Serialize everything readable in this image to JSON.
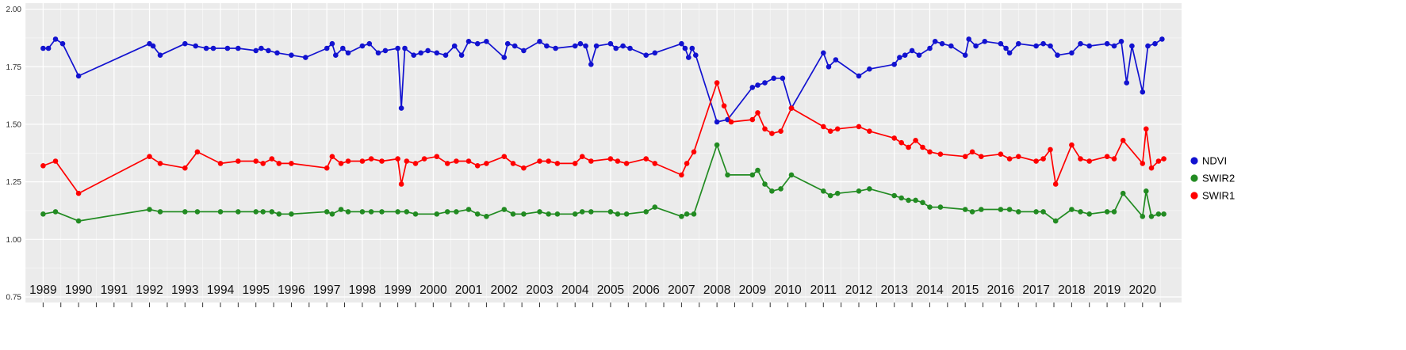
{
  "page": {
    "background": "#FFFFFF"
  },
  "chart_data": {
    "type": "line",
    "title": "",
    "xlabel": "",
    "ylabel": "",
    "xlim": [
      1989,
      2020
    ],
    "ylim": [
      0.75,
      2.0
    ],
    "grid": {
      "major": true,
      "minor": true,
      "panel_background": "#EBEBEB",
      "grid_color": "#FFFFFF"
    },
    "y_tick_values": [
      2.0,
      1.75,
      1.5,
      1.25,
      1.0,
      0.75
    ],
    "y_tick_labels": [
      "2.00",
      "1.75",
      "1.50",
      "1.25",
      "1.00",
      "0.75"
    ],
    "x_tick_labels": [
      "1989",
      "1990",
      "1991",
      "1992",
      "1993",
      "1994",
      "1995",
      "1996",
      "1997",
      "1998",
      "1999",
      "2000",
      "2001",
      "2002",
      "2003",
      "2004",
      "2005",
      "2006",
      "2007",
      "2008",
      "2009",
      "2010",
      "2011",
      "2012",
      "2013",
      "2014",
      "2015",
      "2016",
      "2017",
      "2018",
      "2019",
      "2020"
    ],
    "legend": {
      "position": "right",
      "entries": [
        "NDVI",
        "SWIR2",
        "SWIR1"
      ]
    },
    "theme": {
      "panel_bg": "#EBEBEB",
      "grid_color": "#FFFFFF",
      "axis_text_color": "#303030",
      "x_label_color": "#111111",
      "tick_color": "#333333"
    },
    "series": [
      {
        "name": "NDVI",
        "color": "#1212D0",
        "points": [
          [
            1989.0,
            1.83
          ],
          [
            1989.15,
            1.83
          ],
          [
            1989.35,
            1.87
          ],
          [
            1989.55,
            1.85
          ],
          [
            1990.0,
            1.71
          ],
          [
            1992.0,
            1.85
          ],
          [
            1992.1,
            1.84
          ],
          [
            1992.3,
            1.8
          ],
          [
            1993.0,
            1.85
          ],
          [
            1993.3,
            1.84
          ],
          [
            1993.6,
            1.83
          ],
          [
            1993.8,
            1.83
          ],
          [
            1994.2,
            1.83
          ],
          [
            1994.5,
            1.83
          ],
          [
            1995.0,
            1.82
          ],
          [
            1995.15,
            1.83
          ],
          [
            1995.35,
            1.82
          ],
          [
            1995.6,
            1.81
          ],
          [
            1996.0,
            1.8
          ],
          [
            1996.4,
            1.79
          ],
          [
            1997.0,
            1.83
          ],
          [
            1997.15,
            1.85
          ],
          [
            1997.25,
            1.8
          ],
          [
            1997.45,
            1.83
          ],
          [
            1997.6,
            1.81
          ],
          [
            1998.0,
            1.84
          ],
          [
            1998.2,
            1.85
          ],
          [
            1998.45,
            1.81
          ],
          [
            1998.65,
            1.82
          ],
          [
            1999.0,
            1.83
          ],
          [
            1999.1,
            1.57
          ],
          [
            1999.2,
            1.83
          ],
          [
            1999.45,
            1.8
          ],
          [
            1999.65,
            1.81
          ],
          [
            1999.85,
            1.82
          ],
          [
            2000.1,
            1.81
          ],
          [
            2000.35,
            1.8
          ],
          [
            2000.6,
            1.84
          ],
          [
            2000.8,
            1.8
          ],
          [
            2001.0,
            1.86
          ],
          [
            2001.25,
            1.85
          ],
          [
            2001.5,
            1.86
          ],
          [
            2002.0,
            1.79
          ],
          [
            2002.1,
            1.85
          ],
          [
            2002.3,
            1.84
          ],
          [
            2002.55,
            1.82
          ],
          [
            2003.0,
            1.86
          ],
          [
            2003.2,
            1.84
          ],
          [
            2003.45,
            1.83
          ],
          [
            2004.0,
            1.84
          ],
          [
            2004.15,
            1.85
          ],
          [
            2004.3,
            1.84
          ],
          [
            2004.45,
            1.76
          ],
          [
            2004.6,
            1.84
          ],
          [
            2005.0,
            1.85
          ],
          [
            2005.15,
            1.83
          ],
          [
            2005.35,
            1.84
          ],
          [
            2005.55,
            1.83
          ],
          [
            2006.0,
            1.8
          ],
          [
            2006.25,
            1.81
          ],
          [
            2007.0,
            1.85
          ],
          [
            2007.1,
            1.83
          ],
          [
            2007.2,
            1.79
          ],
          [
            2007.3,
            1.83
          ],
          [
            2007.4,
            1.8
          ],
          [
            2008.0,
            1.51
          ],
          [
            2008.3,
            1.52
          ],
          [
            2009.0,
            1.66
          ],
          [
            2009.15,
            1.67
          ],
          [
            2009.35,
            1.68
          ],
          [
            2009.6,
            1.7
          ],
          [
            2009.85,
            1.7
          ],
          [
            2010.1,
            1.57
          ],
          [
            2011.0,
            1.81
          ],
          [
            2011.15,
            1.75
          ],
          [
            2011.35,
            1.78
          ],
          [
            2012.0,
            1.71
          ],
          [
            2012.3,
            1.74
          ],
          [
            2013.0,
            1.76
          ],
          [
            2013.15,
            1.79
          ],
          [
            2013.3,
            1.8
          ],
          [
            2013.5,
            1.82
          ],
          [
            2013.7,
            1.8
          ],
          [
            2014.0,
            1.83
          ],
          [
            2014.15,
            1.86
          ],
          [
            2014.35,
            1.85
          ],
          [
            2014.6,
            1.84
          ],
          [
            2015.0,
            1.8
          ],
          [
            2015.1,
            1.87
          ],
          [
            2015.3,
            1.84
          ],
          [
            2015.55,
            1.86
          ],
          [
            2016.0,
            1.85
          ],
          [
            2016.15,
            1.83
          ],
          [
            2016.25,
            1.81
          ],
          [
            2016.5,
            1.85
          ],
          [
            2017.0,
            1.84
          ],
          [
            2017.2,
            1.85
          ],
          [
            2017.4,
            1.84
          ],
          [
            2017.6,
            1.8
          ],
          [
            2018.0,
            1.81
          ],
          [
            2018.25,
            1.85
          ],
          [
            2018.5,
            1.84
          ],
          [
            2019.0,
            1.85
          ],
          [
            2019.2,
            1.84
          ],
          [
            2019.4,
            1.86
          ],
          [
            2019.55,
            1.68
          ],
          [
            2019.7,
            1.84
          ],
          [
            2020.0,
            1.64
          ],
          [
            2020.15,
            1.84
          ],
          [
            2020.35,
            1.85
          ],
          [
            2020.55,
            1.87
          ]
        ]
      },
      {
        "name": "SWIR2",
        "color": "#228B22",
        "points": [
          [
            1989.0,
            1.11
          ],
          [
            1989.35,
            1.12
          ],
          [
            1990.0,
            1.08
          ],
          [
            1992.0,
            1.13
          ],
          [
            1992.3,
            1.12
          ],
          [
            1993.0,
            1.12
          ],
          [
            1993.35,
            1.12
          ],
          [
            1994.0,
            1.12
          ],
          [
            1994.5,
            1.12
          ],
          [
            1995.0,
            1.12
          ],
          [
            1995.2,
            1.12
          ],
          [
            1995.45,
            1.12
          ],
          [
            1995.65,
            1.11
          ],
          [
            1996.0,
            1.11
          ],
          [
            1997.0,
            1.12
          ],
          [
            1997.15,
            1.11
          ],
          [
            1997.4,
            1.13
          ],
          [
            1997.6,
            1.12
          ],
          [
            1998.0,
            1.12
          ],
          [
            1998.25,
            1.12
          ],
          [
            1998.55,
            1.12
          ],
          [
            1999.0,
            1.12
          ],
          [
            1999.25,
            1.12
          ],
          [
            1999.5,
            1.11
          ],
          [
            2000.1,
            1.11
          ],
          [
            2000.4,
            1.12
          ],
          [
            2000.65,
            1.12
          ],
          [
            2001.0,
            1.13
          ],
          [
            2001.25,
            1.11
          ],
          [
            2001.5,
            1.1
          ],
          [
            2002.0,
            1.13
          ],
          [
            2002.25,
            1.11
          ],
          [
            2002.55,
            1.11
          ],
          [
            2003.0,
            1.12
          ],
          [
            2003.25,
            1.11
          ],
          [
            2003.5,
            1.11
          ],
          [
            2004.0,
            1.11
          ],
          [
            2004.2,
            1.12
          ],
          [
            2004.45,
            1.12
          ],
          [
            2005.0,
            1.12
          ],
          [
            2005.2,
            1.11
          ],
          [
            2005.45,
            1.11
          ],
          [
            2006.0,
            1.12
          ],
          [
            2006.25,
            1.14
          ],
          [
            2007.0,
            1.1
          ],
          [
            2007.15,
            1.11
          ],
          [
            2007.35,
            1.11
          ],
          [
            2008.0,
            1.41
          ],
          [
            2008.3,
            1.28
          ],
          [
            2009.0,
            1.28
          ],
          [
            2009.15,
            1.3
          ],
          [
            2009.35,
            1.24
          ],
          [
            2009.55,
            1.21
          ],
          [
            2009.8,
            1.22
          ],
          [
            2010.1,
            1.28
          ],
          [
            2011.0,
            1.21
          ],
          [
            2011.2,
            1.19
          ],
          [
            2011.4,
            1.2
          ],
          [
            2012.0,
            1.21
          ],
          [
            2012.3,
            1.22
          ],
          [
            2013.0,
            1.19
          ],
          [
            2013.2,
            1.18
          ],
          [
            2013.4,
            1.17
          ],
          [
            2013.6,
            1.17
          ],
          [
            2013.8,
            1.16
          ],
          [
            2014.0,
            1.14
          ],
          [
            2014.3,
            1.14
          ],
          [
            2015.0,
            1.13
          ],
          [
            2015.2,
            1.12
          ],
          [
            2015.45,
            1.13
          ],
          [
            2016.0,
            1.13
          ],
          [
            2016.25,
            1.13
          ],
          [
            2016.5,
            1.12
          ],
          [
            2017.0,
            1.12
          ],
          [
            2017.2,
            1.12
          ],
          [
            2017.55,
            1.08
          ],
          [
            2018.0,
            1.13
          ],
          [
            2018.25,
            1.12
          ],
          [
            2018.5,
            1.11
          ],
          [
            2019.0,
            1.12
          ],
          [
            2019.2,
            1.12
          ],
          [
            2019.45,
            1.2
          ],
          [
            2020.0,
            1.1
          ],
          [
            2020.1,
            1.21
          ],
          [
            2020.25,
            1.1
          ],
          [
            2020.45,
            1.11
          ],
          [
            2020.6,
            1.11
          ]
        ]
      },
      {
        "name": "SWIR1",
        "color": "#FF0000",
        "points": [
          [
            1989.0,
            1.32
          ],
          [
            1989.35,
            1.34
          ],
          [
            1990.0,
            1.2
          ],
          [
            1992.0,
            1.36
          ],
          [
            1992.3,
            1.33
          ],
          [
            1993.0,
            1.31
          ],
          [
            1993.35,
            1.38
          ],
          [
            1994.0,
            1.33
          ],
          [
            1994.5,
            1.34
          ],
          [
            1995.0,
            1.34
          ],
          [
            1995.2,
            1.33
          ],
          [
            1995.45,
            1.35
          ],
          [
            1995.65,
            1.33
          ],
          [
            1996.0,
            1.33
          ],
          [
            1997.0,
            1.31
          ],
          [
            1997.15,
            1.36
          ],
          [
            1997.4,
            1.33
          ],
          [
            1997.6,
            1.34
          ],
          [
            1998.0,
            1.34
          ],
          [
            1998.25,
            1.35
          ],
          [
            1998.55,
            1.34
          ],
          [
            1999.0,
            1.35
          ],
          [
            1999.1,
            1.24
          ],
          [
            1999.25,
            1.34
          ],
          [
            1999.5,
            1.33
          ],
          [
            1999.75,
            1.35
          ],
          [
            2000.1,
            1.36
          ],
          [
            2000.4,
            1.33
          ],
          [
            2000.65,
            1.34
          ],
          [
            2001.0,
            1.34
          ],
          [
            2001.25,
            1.32
          ],
          [
            2001.5,
            1.33
          ],
          [
            2002.0,
            1.36
          ],
          [
            2002.25,
            1.33
          ],
          [
            2002.55,
            1.31
          ],
          [
            2003.0,
            1.34
          ],
          [
            2003.25,
            1.34
          ],
          [
            2003.5,
            1.33
          ],
          [
            2004.0,
            1.33
          ],
          [
            2004.2,
            1.36
          ],
          [
            2004.45,
            1.34
          ],
          [
            2005.0,
            1.35
          ],
          [
            2005.2,
            1.34
          ],
          [
            2005.45,
            1.33
          ],
          [
            2006.0,
            1.35
          ],
          [
            2006.25,
            1.33
          ],
          [
            2007.0,
            1.28
          ],
          [
            2007.15,
            1.33
          ],
          [
            2007.35,
            1.38
          ],
          [
            2008.0,
            1.68
          ],
          [
            2008.2,
            1.58
          ],
          [
            2008.4,
            1.51
          ],
          [
            2009.0,
            1.52
          ],
          [
            2009.15,
            1.55
          ],
          [
            2009.35,
            1.48
          ],
          [
            2009.55,
            1.46
          ],
          [
            2009.8,
            1.47
          ],
          [
            2010.1,
            1.57
          ],
          [
            2011.0,
            1.49
          ],
          [
            2011.2,
            1.47
          ],
          [
            2011.4,
            1.48
          ],
          [
            2012.0,
            1.49
          ],
          [
            2012.3,
            1.47
          ],
          [
            2013.0,
            1.44
          ],
          [
            2013.2,
            1.42
          ],
          [
            2013.4,
            1.4
          ],
          [
            2013.6,
            1.43
          ],
          [
            2013.8,
            1.4
          ],
          [
            2014.0,
            1.38
          ],
          [
            2014.3,
            1.37
          ],
          [
            2015.0,
            1.36
          ],
          [
            2015.2,
            1.38
          ],
          [
            2015.45,
            1.36
          ],
          [
            2016.0,
            1.37
          ],
          [
            2016.25,
            1.35
          ],
          [
            2016.5,
            1.36
          ],
          [
            2017.0,
            1.34
          ],
          [
            2017.2,
            1.35
          ],
          [
            2017.4,
            1.39
          ],
          [
            2017.55,
            1.24
          ],
          [
            2018.0,
            1.41
          ],
          [
            2018.25,
            1.35
          ],
          [
            2018.5,
            1.34
          ],
          [
            2019.0,
            1.36
          ],
          [
            2019.2,
            1.35
          ],
          [
            2019.45,
            1.43
          ],
          [
            2020.0,
            1.33
          ],
          [
            2020.1,
            1.48
          ],
          [
            2020.25,
            1.31
          ],
          [
            2020.45,
            1.34
          ],
          [
            2020.6,
            1.35
          ]
        ]
      }
    ]
  }
}
